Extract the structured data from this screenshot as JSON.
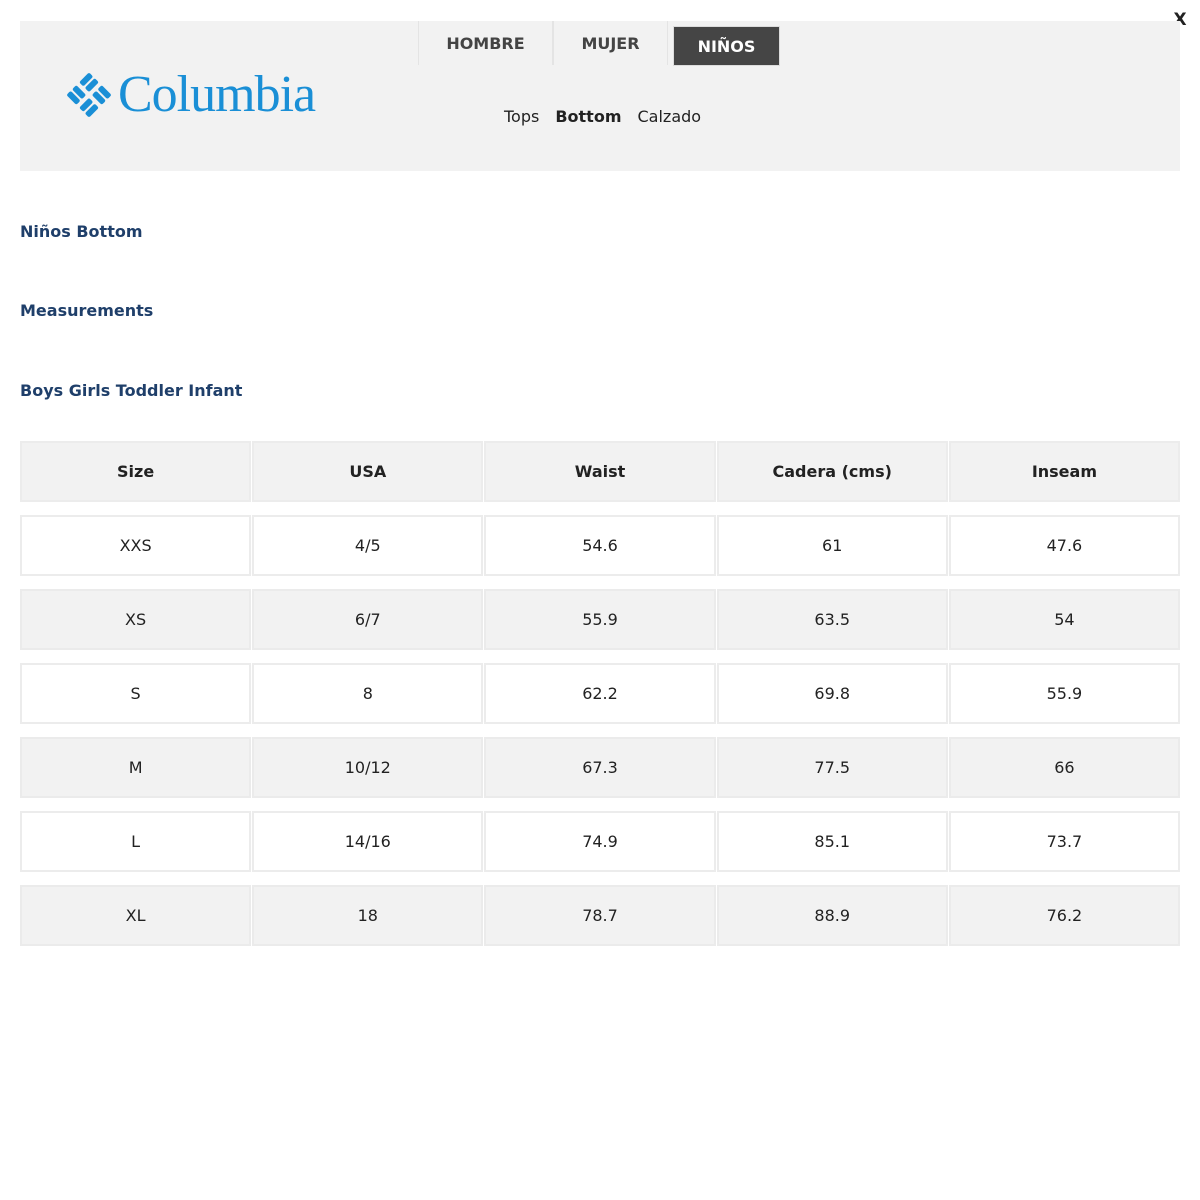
{
  "close_label": "X",
  "brand": {
    "name": "Columbia",
    "color": "#1a8fd6"
  },
  "tabs": [
    {
      "label": "HOMBRE",
      "active": false
    },
    {
      "label": "MUJER",
      "active": false
    },
    {
      "label": "NIÑOS",
      "active": true
    }
  ],
  "subnav": [
    {
      "label": "Tops",
      "active": false
    },
    {
      "label": "Bottom",
      "active": true
    },
    {
      "label": "Calzado",
      "active": false
    }
  ],
  "headings": {
    "title": "Niños Bottom",
    "measurements": "Measurements",
    "categories": "Boys Girls Toddler Infant"
  },
  "table": {
    "columns": [
      "Size",
      "USA",
      "Waist",
      "Cadera (cms)",
      "Inseam"
    ],
    "rows": [
      [
        "XXS",
        "4/5",
        "54.6",
        "61",
        "47.6"
      ],
      [
        "XS",
        "6/7",
        "55.9",
        "63.5",
        "54"
      ],
      [
        "S",
        "8",
        "62.2",
        "69.8",
        "55.9"
      ],
      [
        "M",
        "10/12",
        "67.3",
        "77.5",
        "66"
      ],
      [
        "L",
        "14/16",
        "74.9",
        "85.1",
        "73.7"
      ],
      [
        "XL",
        "18",
        "78.7",
        "88.9",
        "76.2"
      ]
    ]
  }
}
